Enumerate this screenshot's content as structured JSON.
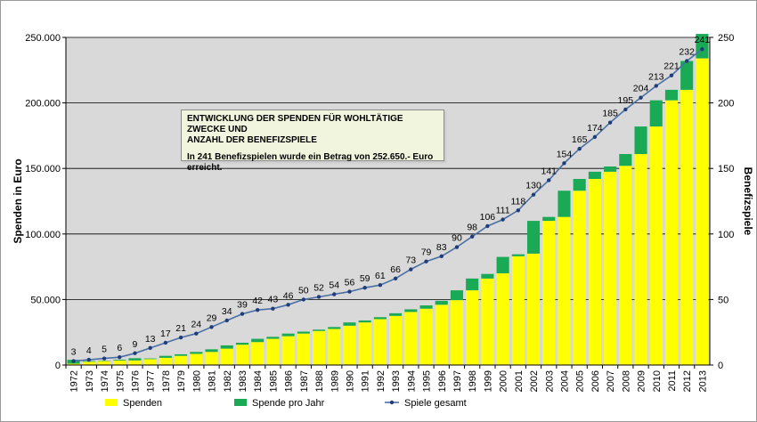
{
  "chart_data": {
    "type": "bar",
    "stacked": true,
    "annotation": {
      "line1": "ENTWICKLUNG DER SPENDEN FÜR WOHLTÄTIGE ZWECKE UND",
      "line2": "ANZAHL DER BENEFIZSPIELE",
      "line3": "In 241 Benefizspielen wurde ein Betrag von 252.650.- Euro erreicht."
    },
    "ylabel_left": "Spenden in Euro",
    "ylabel_right": "Benefizspiele",
    "ylim_left": [
      0,
      250000
    ],
    "ylim_right": [
      0,
      250
    ],
    "yticks_left": [
      "0",
      "50.000",
      "100.000",
      "150.000",
      "200.000",
      "250.000"
    ],
    "yticks_right": [
      "0",
      "50",
      "100",
      "150",
      "200",
      "250"
    ],
    "grid": true,
    "legend_position": "bottom",
    "categories": [
      "1972",
      "1973",
      "1974",
      "1975",
      "1976",
      "1977",
      "1978",
      "1979",
      "1980",
      "1981",
      "1982",
      "1983",
      "1984",
      "1985",
      "1986",
      "1987",
      "1988",
      "1989",
      "1990",
      "1991",
      "1992",
      "1993",
      "1994",
      "1995",
      "1996",
      "1997",
      "1998",
      "1999",
      "2000",
      "2001",
      "2002",
      "2003",
      "2004",
      "2005",
      "2006",
      "2007",
      "2008",
      "2009",
      "2010",
      "2011",
      "2012",
      "2013"
    ],
    "series": [
      {
        "name": "Spenden",
        "color": "#ffff00",
        "values": [
          1000,
          2500,
          3000,
          3500,
          3500,
          4500,
          5500,
          7000,
          8500,
          10000,
          12500,
          15500,
          17500,
          20000,
          22000,
          24000,
          26000,
          27500,
          30000,
          32500,
          35000,
          37500,
          40500,
          43000,
          46000,
          49500,
          57000,
          66000,
          70000,
          83000,
          85000,
          110000,
          113000,
          133000,
          142000,
          147500,
          152000,
          161000,
          182000,
          202000,
          210000,
          234000
        ]
      },
      {
        "name": "Spende pro Jahr",
        "color": "#1aaa55",
        "values": [
          3000,
          500,
          300,
          600,
          1700,
          500,
          1500,
          1200,
          1500,
          2000,
          2500,
          1500,
          2500,
          1500,
          2000,
          1500,
          1000,
          1500,
          2500,
          1500,
          1500,
          2000,
          2000,
          2500,
          3000,
          7500,
          9000,
          3500,
          12500,
          1500,
          25000,
          3000,
          20000,
          9000,
          5500,
          4000,
          9000,
          21000,
          20000,
          8000,
          22000,
          18650
        ]
      },
      {
        "name": "Spiele gesamt",
        "color": "#1f3d7a",
        "type": "line",
        "axis": "right",
        "values": [
          3,
          4,
          5,
          6,
          9,
          13,
          17,
          21,
          24,
          29,
          34,
          39,
          42,
          43,
          46,
          50,
          52,
          54,
          56,
          59,
          61,
          66,
          73,
          79,
          83,
          90,
          98,
          106,
          111,
          118,
          130,
          141,
          154,
          165,
          174,
          185,
          195,
          204,
          213,
          221,
          232,
          241
        ]
      }
    ]
  }
}
